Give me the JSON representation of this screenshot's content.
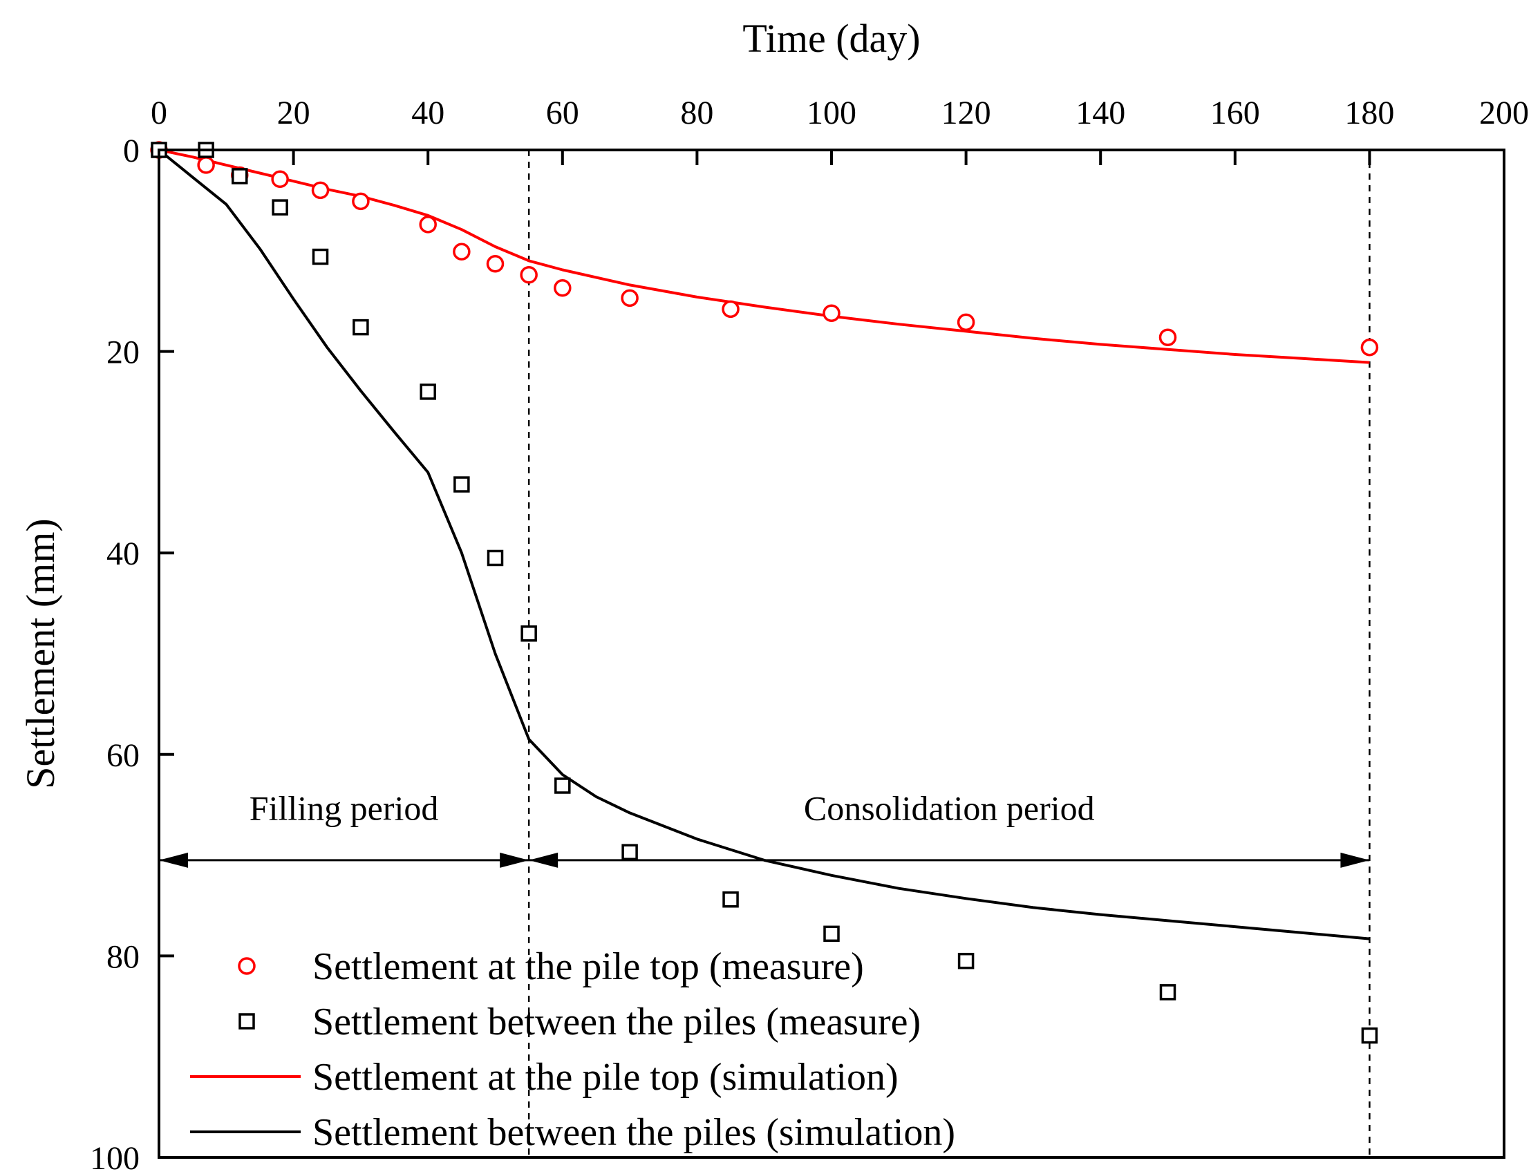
{
  "chart_data": {
    "type": "scatter",
    "title": "",
    "xlabel": "Time (day)",
    "ylabel": "Settlement (mm)",
    "xlim": [
      0,
      200
    ],
    "ylim": [
      0,
      100
    ],
    "y_inverted": true,
    "x_axis_position": "top",
    "xticks": [
      0,
      20,
      40,
      60,
      80,
      100,
      120,
      140,
      160,
      180,
      200
    ],
    "yticks": [
      0,
      20,
      40,
      60,
      80,
      100
    ],
    "xtick_labels": [
      "0",
      "20",
      "40",
      "60",
      "80",
      "100",
      "120",
      "140",
      "160",
      "180",
      "200"
    ],
    "ytick_labels": [
      "0",
      "20",
      "40",
      "60",
      "80",
      "100"
    ],
    "vertical_reference_lines": [
      55,
      180
    ],
    "annotations": {
      "filling_label": "Filling period",
      "filling_range": [
        0,
        55
      ],
      "consolidation_label": "Consolidation period",
      "consolidation_range": [
        55,
        180
      ],
      "arrow_y": 70.5,
      "label_y": 66.5
    },
    "legend_position": "bottom-left",
    "series": [
      {
        "name": "Settlement at the pile top (measure)",
        "kind": "scatter",
        "marker": "circle",
        "color": "#ff0000",
        "x": [
          0,
          7,
          12,
          18,
          24,
          30,
          40,
          45,
          50,
          55,
          60,
          70,
          85,
          100,
          120,
          150,
          180
        ],
        "y": [
          0,
          1.5,
          2.5,
          2.9,
          4.0,
          5.1,
          7.4,
          10.1,
          11.3,
          12.4,
          13.7,
          14.7,
          15.8,
          16.2,
          17.1,
          18.6,
          19.6
        ]
      },
      {
        "name": "Settlement between the piles (measure)",
        "kind": "scatter",
        "marker": "square",
        "color": "#000000",
        "x": [
          0,
          7,
          12,
          18,
          24,
          30,
          40,
          45,
          50,
          55,
          60,
          70,
          85,
          100,
          120,
          150,
          180
        ],
        "y": [
          0,
          0,
          2.6,
          5.7,
          10.6,
          17.6,
          24.0,
          33.2,
          40.5,
          48.0,
          63.1,
          69.7,
          74.4,
          77.8,
          80.5,
          83.6,
          87.9
        ]
      },
      {
        "name": "Settlement at the pile top (simulation)",
        "kind": "line",
        "color": "#ff0000",
        "x": [
          0,
          5,
          10,
          15,
          20,
          25,
          30,
          35,
          40,
          45,
          50,
          55,
          60,
          70,
          80,
          90,
          100,
          110,
          120,
          130,
          140,
          150,
          160,
          170,
          180
        ],
        "y": [
          0,
          0.7,
          1.5,
          2.3,
          3.1,
          3.9,
          4.6,
          5.5,
          6.5,
          7.9,
          9.6,
          11.0,
          11.9,
          13.4,
          14.6,
          15.6,
          16.5,
          17.3,
          18.0,
          18.7,
          19.3,
          19.8,
          20.3,
          20.7,
          21.1
        ]
      },
      {
        "name": "Settlement between the piles (simulation)",
        "kind": "line",
        "color": "#000000",
        "x": [
          0,
          5,
          10,
          15,
          20,
          25,
          30,
          35,
          40,
          45,
          50,
          55,
          60,
          65,
          70,
          80,
          90,
          100,
          110,
          120,
          130,
          140,
          150,
          160,
          170,
          180
        ],
        "y": [
          0,
          2.7,
          5.4,
          9.8,
          14.8,
          19.6,
          23.9,
          28.0,
          32.0,
          40.0,
          50.0,
          58.5,
          62.0,
          64.2,
          65.8,
          68.4,
          70.5,
          72.0,
          73.3,
          74.3,
          75.2,
          75.9,
          76.5,
          77.1,
          77.7,
          78.3
        ]
      }
    ]
  }
}
